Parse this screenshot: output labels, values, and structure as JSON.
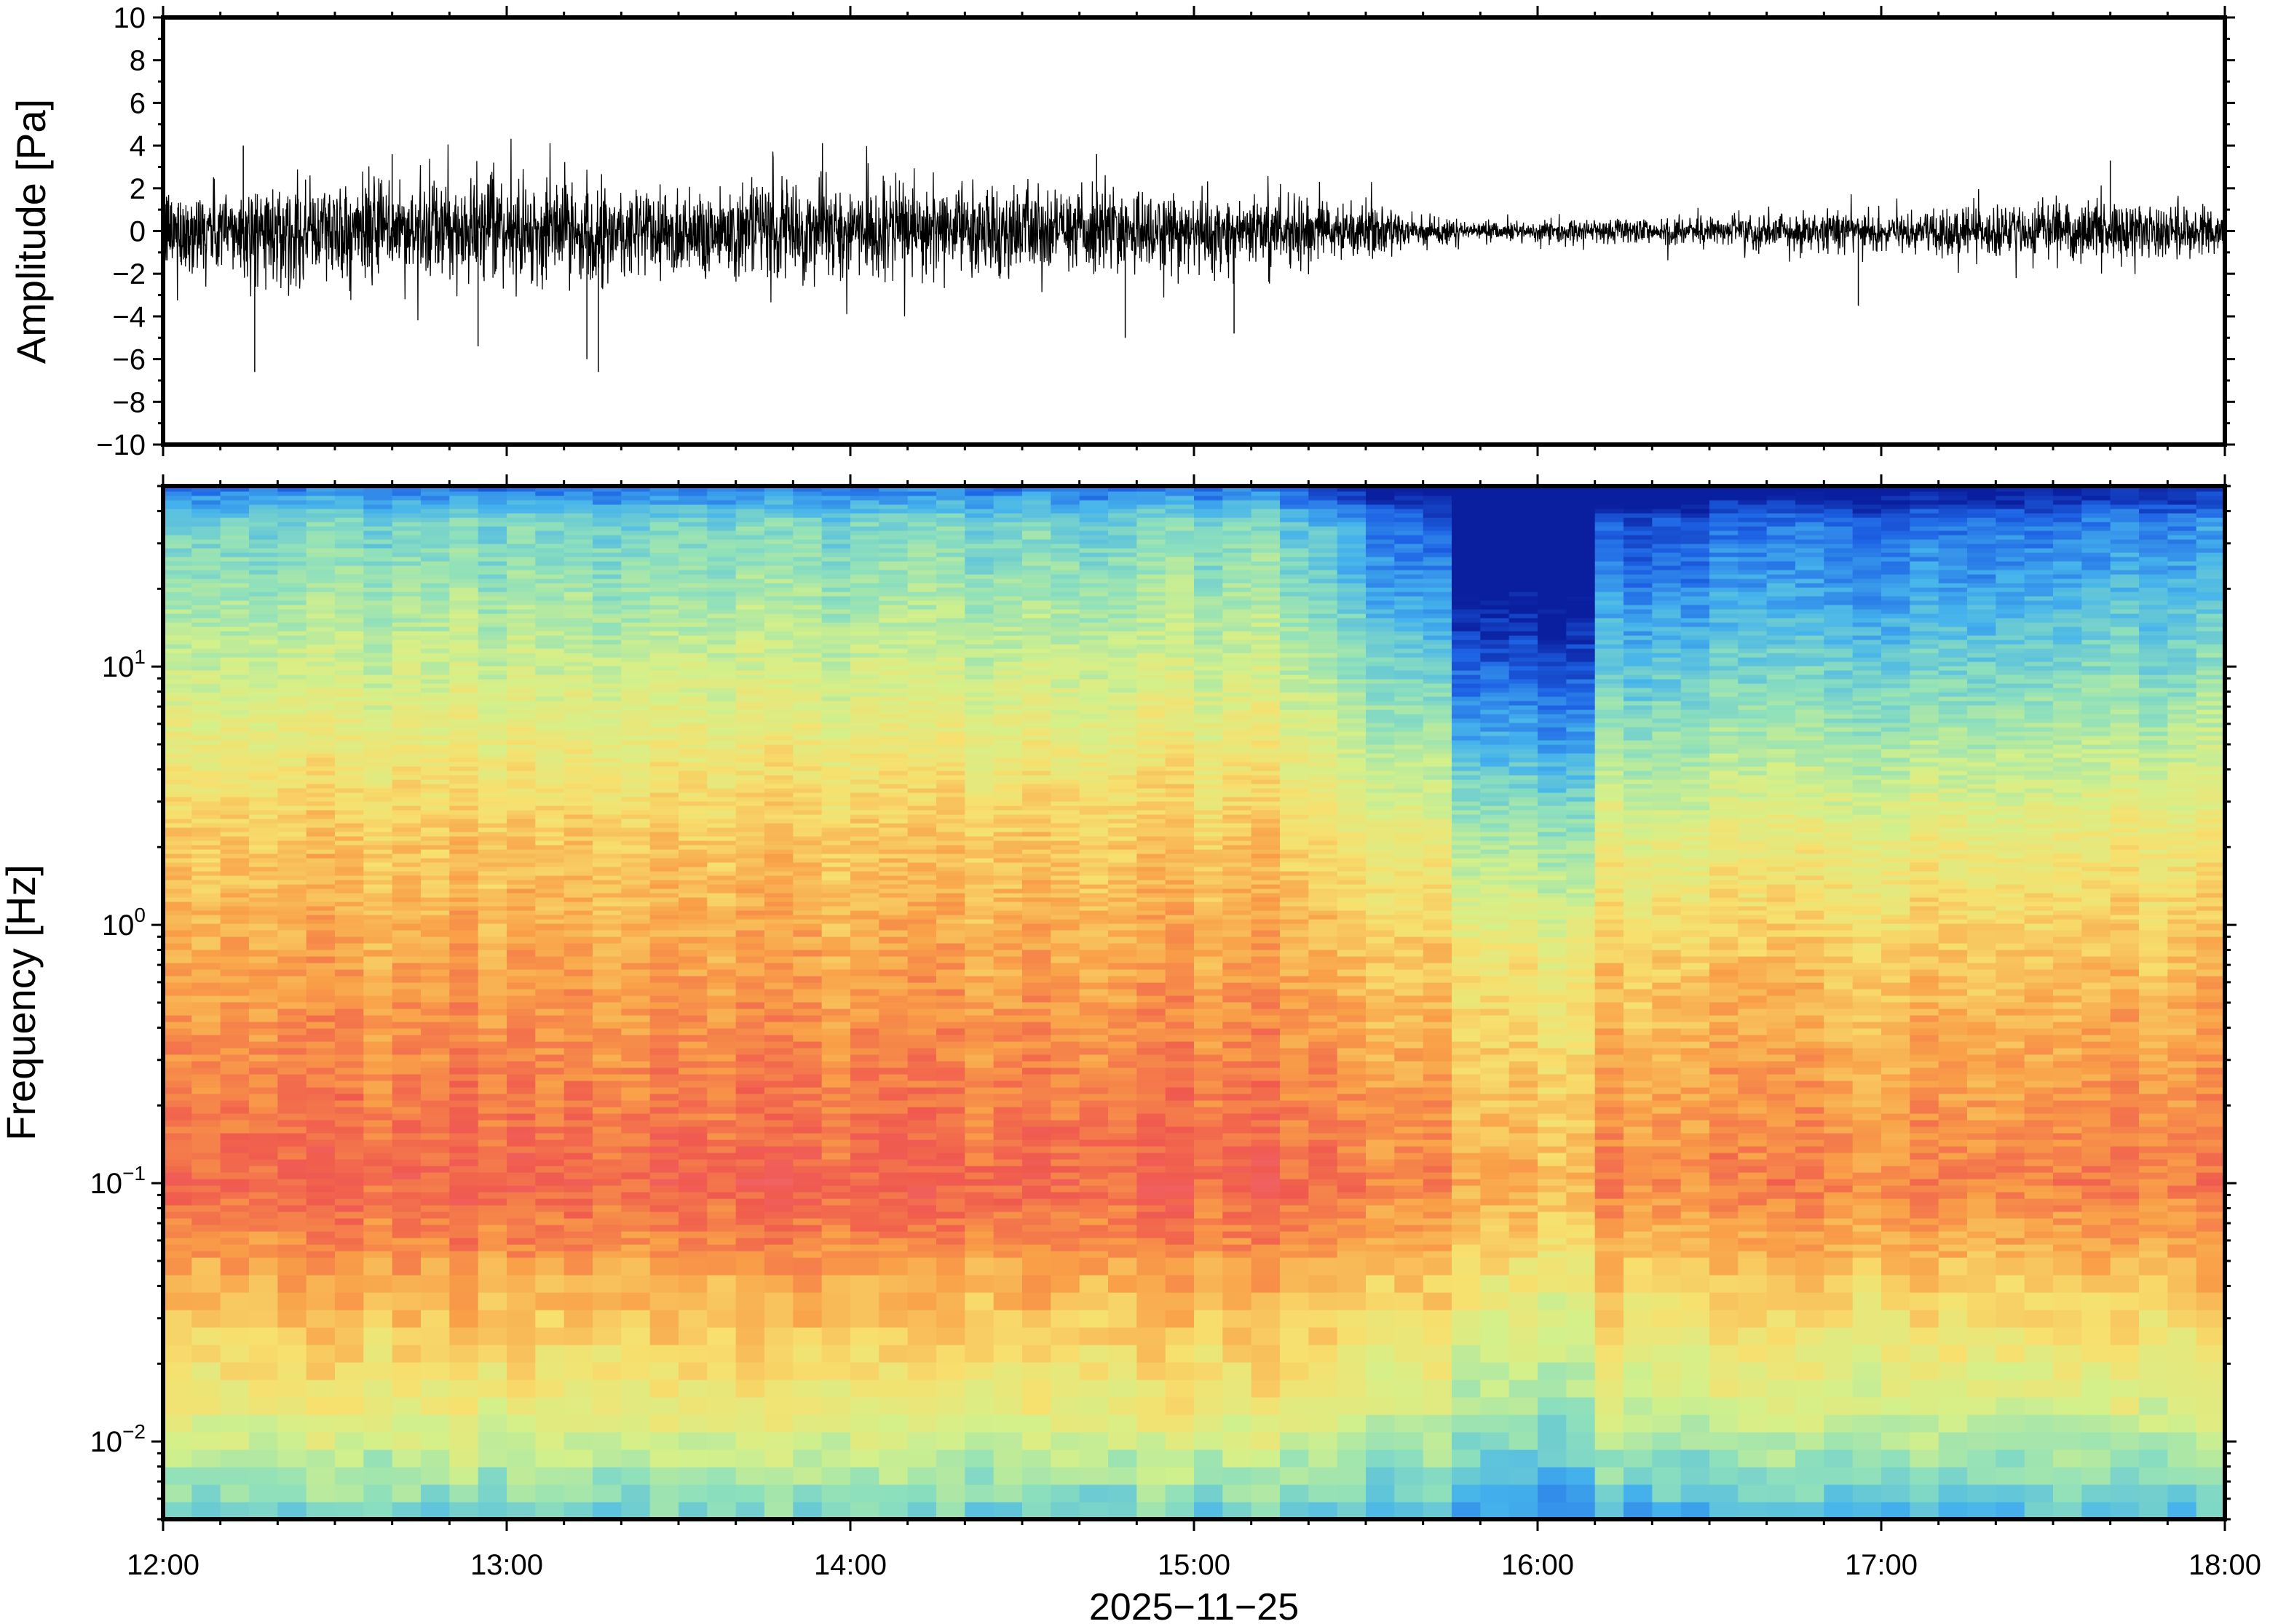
{
  "chart_data": [
    {
      "type": "line",
      "name": "waveform",
      "ylabel": "Amplitude [Pa]",
      "ylim": [
        -10,
        10
      ],
      "xlim": [
        "12:00",
        "18:00"
      ],
      "y_ticks": [
        10,
        8,
        6,
        4,
        2,
        0,
        -2,
        -4,
        -6,
        -8,
        -10
      ],
      "y_tick_labels": [
        "10",
        "8",
        "6",
        "4",
        "2",
        "0",
        "−2",
        "−4",
        "−6",
        "−8",
        "−10"
      ],
      "envelope": {
        "hours": [
          12.0,
          12.5,
          13.0,
          13.5,
          14.0,
          14.5,
          15.0,
          15.3,
          15.6,
          15.8,
          16.0,
          16.3,
          16.6,
          16.9,
          17.1,
          17.3,
          17.5,
          17.7,
          18.0
        ],
        "typical_amplitude_pa": [
          1.3,
          1.5,
          1.5,
          1.4,
          1.4,
          1.3,
          1.2,
          1.0,
          0.6,
          0.3,
          0.3,
          0.4,
          0.5,
          0.6,
          0.6,
          0.8,
          0.8,
          0.9,
          0.7
        ]
      },
      "peaks": [
        {
          "time": "12:14",
          "amplitude": 4.0
        },
        {
          "time": "12:16",
          "amplitude": -6.6
        },
        {
          "time": "12:40",
          "amplitude": 3.6
        },
        {
          "time": "12:55",
          "amplitude": -5.4
        },
        {
          "time": "13:14",
          "amplitude": -6.0
        },
        {
          "time": "13:16",
          "amplitude": -6.6
        },
        {
          "time": "14:43",
          "amplitude": 3.6
        },
        {
          "time": "14:48",
          "amplitude": -5.0
        },
        {
          "time": "15:07",
          "amplitude": -4.8
        },
        {
          "time": "16:56",
          "amplitude": -3.5
        },
        {
          "time": "17:40",
          "amplitude": 3.3
        }
      ]
    },
    {
      "type": "heatmap",
      "name": "spectrogram",
      "ylabel": "Frequency [Hz]",
      "yscale": "log",
      "ylim": [
        0.005,
        50
      ],
      "y_ticks": [
        0.01,
        0.1,
        1,
        10
      ],
      "y_tick_labels": [
        {
          "base": "10",
          "exp": "−2"
        },
        {
          "base": "10",
          "exp": "−1"
        },
        {
          "base": "10",
          "exp": "0"
        },
        {
          "base": "10",
          "exp": "1"
        }
      ],
      "xlim": [
        "12:00",
        "18:00"
      ],
      "xlabel": "2025−11−25",
      "x_ticks": [
        "12:00",
        "13:00",
        "14:00",
        "15:00",
        "16:00",
        "17:00",
        "18:00"
      ],
      "colormap": [
        "#0a1fa0",
        "#1e64e6",
        "#46b4ec",
        "#8ee0bc",
        "#d4f08a",
        "#f7e06e",
        "#f9a048",
        "#f05a4e",
        "#f36a7a"
      ],
      "quiet_period": {
        "start": "15:45",
        "end": "16:10"
      }
    }
  ]
}
